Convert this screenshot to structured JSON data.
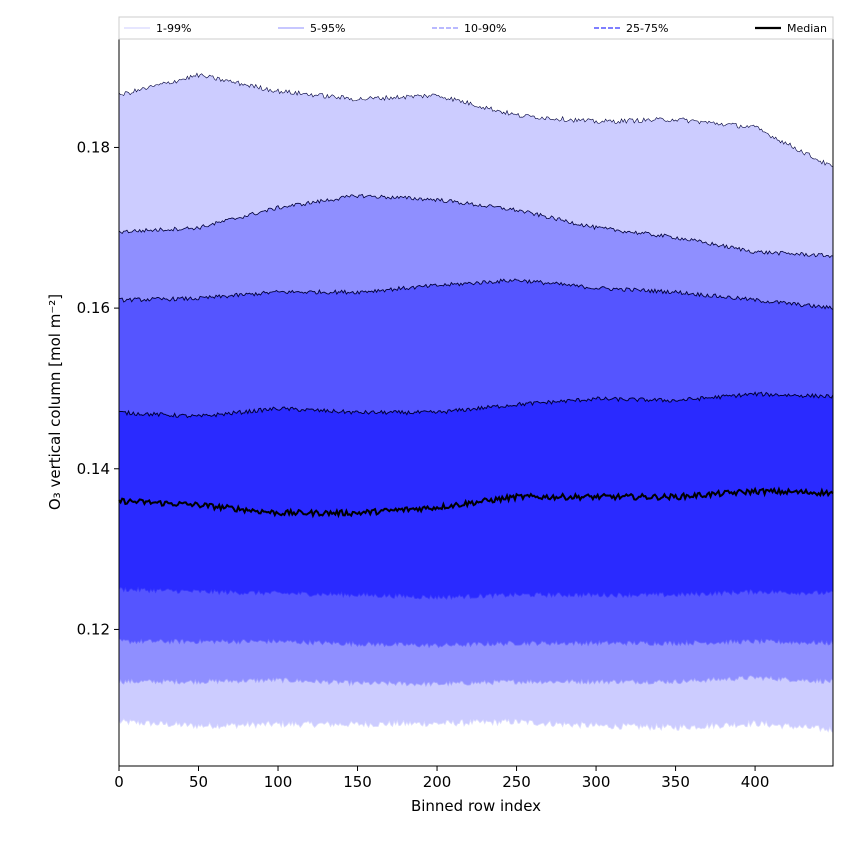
{
  "chart_data": {
    "type": "area",
    "xlabel": "Binned row index",
    "ylabel": "O₃ vertical column [mol m⁻²]",
    "xlim": [
      0,
      449
    ],
    "ylim": [
      0.103,
      0.1935
    ],
    "xticks": [
      0,
      50,
      100,
      150,
      200,
      250,
      300,
      350,
      400
    ],
    "yticks": [
      0.12,
      0.14,
      0.16,
      0.18
    ],
    "ytick_labels": [
      "0.12",
      "0.14",
      "0.16",
      "0.18"
    ],
    "legend": {
      "placement": "top",
      "entries": [
        "1-99%",
        "5-95%",
        "10-90%",
        "25-75%",
        "Median"
      ]
    },
    "colors": {
      "band_1_99": "#ccccff",
      "band_5_95": "#8f8fff",
      "band_10_90": "#5555ff",
      "band_25_75": "#2a2aff",
      "median": "#000000"
    },
    "profiles": {
      "x": [
        0,
        50,
        100,
        150,
        200,
        250,
        300,
        350,
        400,
        449
      ],
      "p99": [
        0.1865,
        0.189,
        0.187,
        0.186,
        0.1865,
        0.184,
        0.1832,
        0.1835,
        0.1825,
        0.1775
      ],
      "p95": [
        0.1695,
        0.17,
        0.1725,
        0.174,
        0.1735,
        0.1722,
        0.17,
        0.1688,
        0.167,
        0.1665
      ],
      "p90": [
        0.161,
        0.1612,
        0.162,
        0.162,
        0.1628,
        0.1635,
        0.1625,
        0.162,
        0.161,
        0.16
      ],
      "p75": [
        0.147,
        0.1465,
        0.1475,
        0.147,
        0.147,
        0.148,
        0.1487,
        0.1485,
        0.1493,
        0.149
      ],
      "p50": [
        0.136,
        0.1355,
        0.1345,
        0.1345,
        0.1352,
        0.1365,
        0.1365,
        0.1365,
        0.1372,
        0.137
      ],
      "p25": [
        0.125,
        0.1247,
        0.1245,
        0.1243,
        0.124,
        0.1243,
        0.1243,
        0.1243,
        0.1247,
        0.1245
      ],
      "p10": [
        0.1185,
        0.1185,
        0.1185,
        0.1182,
        0.118,
        0.1183,
        0.1183,
        0.1183,
        0.1185,
        0.1183
      ],
      "p5": [
        0.1135,
        0.1135,
        0.1137,
        0.1133,
        0.1132,
        0.1135,
        0.1135,
        0.1135,
        0.114,
        0.1135
      ],
      "p1": [
        0.1085,
        0.108,
        0.1082,
        0.1082,
        0.1083,
        0.1085,
        0.108,
        0.1078,
        0.1083,
        0.1075
      ]
    }
  }
}
